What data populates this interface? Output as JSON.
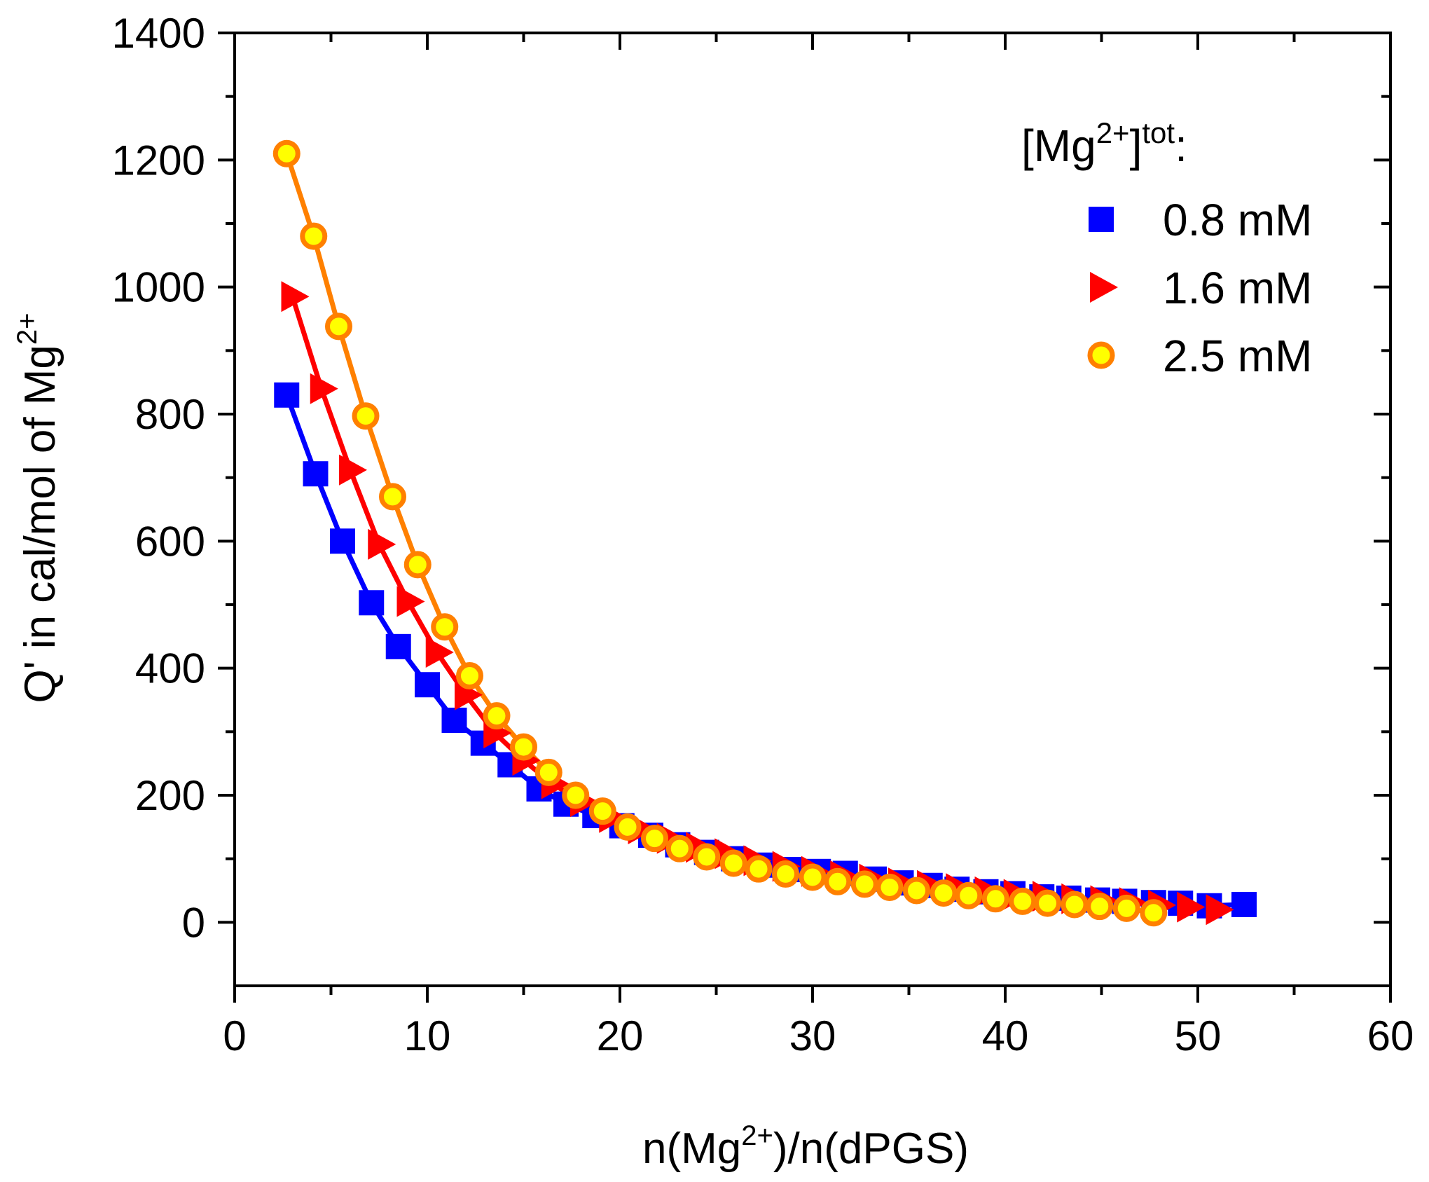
{
  "chart_data": {
    "type": "scatter",
    "title": "",
    "xlabel": "n(Mg2+)/n(dPGS)",
    "xlabel_parts": {
      "pre": "n(Mg",
      "sup": "2+",
      "post": ")/n(dPGS)"
    },
    "ylabel": "Q' in cal/mol of Mg2+",
    "ylabel_parts": {
      "pre": "Q' in cal/mol of Mg",
      "sup": "2+"
    },
    "xlim": [
      0,
      60
    ],
    "ylim": [
      -100,
      1400
    ],
    "xticks": [
      "0",
      "10",
      "20",
      "30",
      "40",
      "50",
      "60"
    ],
    "yticks": [
      "0",
      "200",
      "400",
      "600",
      "800",
      "1000",
      "1200",
      "1400"
    ],
    "legend": {
      "title": "[Mg2+]tot:",
      "title_parts": {
        "pre": "[Mg",
        "sup1": "2+",
        "mid": "]",
        "sup2": "tot",
        "post": ":"
      },
      "position": "top-right"
    },
    "series": [
      {
        "name": "0.8 mM",
        "color": "#0000ff",
        "marker": "square",
        "x": [
          2.7,
          4.2,
          5.6,
          7.1,
          8.5,
          10.0,
          11.4,
          12.9,
          14.3,
          15.8,
          17.2,
          18.7,
          20.1,
          21.6,
          23.0,
          24.5,
          25.9,
          27.4,
          28.8,
          30.3,
          31.7,
          33.2,
          34.6,
          36.1,
          37.5,
          39.0,
          40.4,
          41.9,
          43.3,
          44.8,
          46.2,
          47.7,
          49.1,
          50.6,
          52.4
        ],
        "y": [
          830,
          706,
          600,
          503,
          434,
          374,
          318,
          282,
          248,
          210,
          186,
          168,
          152,
          137,
          122,
          110,
          100,
          90,
          83,
          80,
          77,
          68,
          62,
          58,
          52,
          48,
          45,
          40,
          38,
          35,
          33,
          31,
          30,
          26,
          28
        ]
      },
      {
        "name": "1.6 mM",
        "color": "#ff0000",
        "marker": "triangle-right",
        "x": [
          3.0,
          4.5,
          6.0,
          7.5,
          9.0,
          10.5,
          12.0,
          13.5,
          15.0,
          16.5,
          18.0,
          19.5,
          21.0,
          22.5,
          24.0,
          25.5,
          27.0,
          28.5,
          30.0,
          31.5,
          33.0,
          34.5,
          36.0,
          37.5,
          39.0,
          40.5,
          42.0,
          43.5,
          45.0,
          46.5,
          48.0,
          49.5,
          51.0
        ],
        "y": [
          985,
          840,
          712,
          595,
          505,
          425,
          358,
          298,
          255,
          218,
          190,
          165,
          147,
          132,
          118,
          108,
          97,
          88,
          80,
          73,
          68,
          62,
          58,
          53,
          48,
          44,
          41,
          37,
          34,
          31,
          27,
          24,
          20
        ]
      },
      {
        "name": "2.5 mM",
        "color": "#ff8000",
        "fill": "#ffff00",
        "marker": "circle",
        "x": [
          2.7,
          4.1,
          5.4,
          6.8,
          8.2,
          9.5,
          10.9,
          12.2,
          13.6,
          15.0,
          16.3,
          17.7,
          19.1,
          20.4,
          21.8,
          23.1,
          24.5,
          25.9,
          27.2,
          28.6,
          30.0,
          31.3,
          32.7,
          34.0,
          35.4,
          36.8,
          38.1,
          39.5,
          40.9,
          42.2,
          43.6,
          44.9,
          46.3,
          47.7
        ],
        "y": [
          1210,
          1080,
          938,
          797,
          670,
          563,
          465,
          388,
          325,
          276,
          236,
          200,
          175,
          150,
          132,
          116,
          103,
          93,
          84,
          76,
          71,
          64,
          60,
          55,
          50,
          46,
          42,
          37,
          33,
          30,
          28,
          25,
          22,
          15
        ]
      }
    ]
  }
}
